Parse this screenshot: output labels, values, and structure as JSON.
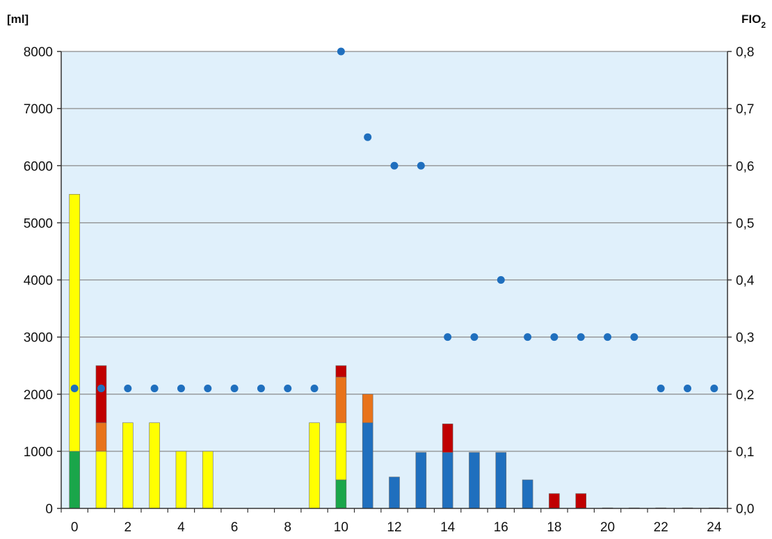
{
  "chart_data": {
    "type": "bar",
    "title": "",
    "xlabel": "",
    "ylabel_left": "[ml]",
    "ylabel_right": "FIO2",
    "x": [
      0,
      1,
      2,
      3,
      4,
      5,
      6,
      7,
      8,
      9,
      10,
      11,
      12,
      13,
      14,
      15,
      16,
      17,
      18,
      19,
      20,
      21,
      22,
      23,
      24
    ],
    "x_tick_labels": [
      "0",
      "2",
      "4",
      "6",
      "8",
      "10",
      "12",
      "14",
      "16",
      "18",
      "20",
      "22",
      "24"
    ],
    "y_left_tick_labels": [
      "0",
      "1000",
      "2000",
      "3000",
      "4000",
      "5000",
      "6000",
      "7000",
      "8000"
    ],
    "y_right_tick_labels": [
      "0,0",
      "0,1",
      "0,2",
      "0,3",
      "0,4",
      "0,5",
      "0,6",
      "0,7",
      "0,8"
    ],
    "ylim_left": [
      0,
      8000
    ],
    "ylim_right": [
      0,
      0.8
    ],
    "grid": true,
    "stacked": true,
    "series": [
      {
        "color": "#1aa64a",
        "values": [
          1000,
          0,
          0,
          0,
          0,
          0,
          0,
          0,
          0,
          0,
          500,
          0,
          0,
          0,
          0,
          0,
          0,
          0,
          0,
          0,
          0,
          0,
          0,
          0,
          0
        ]
      },
      {
        "color": "#ffff00",
        "values": [
          4500,
          1000,
          1500,
          1500,
          1000,
          1000,
          0,
          0,
          0,
          1500,
          1000,
          0,
          0,
          0,
          0,
          0,
          0,
          0,
          0,
          0,
          0,
          0,
          0,
          0,
          0
        ]
      },
      {
        "color": "#1f6fbe",
        "values": [
          0,
          0,
          0,
          0,
          0,
          0,
          0,
          0,
          0,
          0,
          0,
          1500,
          550,
          980,
          980,
          980,
          980,
          500,
          0,
          0,
          0,
          0,
          0,
          0,
          0
        ]
      },
      {
        "color": "#e8731a",
        "values": [
          0,
          500,
          0,
          0,
          0,
          0,
          0,
          0,
          0,
          0,
          800,
          500,
          0,
          0,
          0,
          0,
          0,
          0,
          0,
          0,
          0,
          0,
          0,
          0,
          0
        ]
      },
      {
        "color": "#c00000",
        "values": [
          0,
          1000,
          0,
          0,
          0,
          0,
          0,
          0,
          0,
          0,
          200,
          0,
          0,
          0,
          500,
          0,
          0,
          0,
          260,
          260,
          10,
          10,
          10,
          10,
          10
        ]
      }
    ],
    "fio2_series": {
      "color": "#1f6fbe",
      "axis": "right",
      "values": [
        0.21,
        0.21,
        0.21,
        0.21,
        0.21,
        0.21,
        0.21,
        0.21,
        0.21,
        0.21,
        0.8,
        0.65,
        0.6,
        0.6,
        0.3,
        0.3,
        0.4,
        0.3,
        0.3,
        0.3,
        0.3,
        0.3,
        0.21,
        0.21,
        0.21
      ]
    },
    "colors": {
      "plot_background": "#e0f0fb",
      "grid": "#8a8a8a",
      "axis": "#333333"
    }
  }
}
